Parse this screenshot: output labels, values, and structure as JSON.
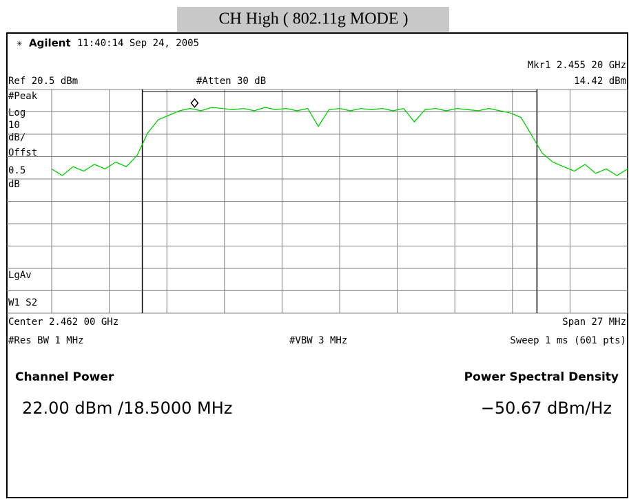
{
  "chart_data": {
    "type": "line",
    "title": "CH High ( 802.11g MODE )",
    "header": {
      "brand": "Agilent",
      "timestamp": "11:40:14  Sep 24, 2005"
    },
    "ref_label": "Ref 20.5 dBm",
    "atten_label": "#Atten 30 dB",
    "marker_label": "Mkr1  2.455 20 GHz",
    "marker_value_label": "14.42 dBm",
    "side_labels": [
      "#Peak",
      "Log",
      "10",
      "dB/",
      "Offst",
      "0.5",
      "dB",
      "LgAv",
      "W1  S2"
    ],
    "center_label": "Center 2.462 00 GHz",
    "span_label": "Span 27 MHz",
    "rbw_label": "#Res BW 1 MHz",
    "vbw_label": "#VBW 3 MHz",
    "sweep_label": "Sweep 1 ms (601 pts)",
    "results": {
      "channel_power_title": "Channel Power",
      "channel_power": "22.00 dBm /18.5000 MHz",
      "psd_title": "Power Spectral Density",
      "psd": "−50.67 dBm/Hz"
    },
    "xlim": [
      2.4485,
      2.4755
    ],
    "xticks": [
      2.4485,
      2.4512,
      2.4539,
      2.4566,
      2.4593,
      2.462,
      2.4647,
      2.4674,
      2.4701,
      2.4728,
      2.4755
    ],
    "ylim": [
      -79.5,
      20.5
    ],
    "yticks": [
      20.5,
      10.5,
      0.5,
      -9.5,
      -19.5,
      -29.5,
      -39.5,
      -49.5,
      -59.5,
      -69.5,
      -79.5
    ],
    "grid": true,
    "channel_edges": [
      2.45275,
      2.47125
    ],
    "marker": {
      "x": 2.4552,
      "y": 14.42
    },
    "x": [
      2.4485,
      2.449,
      2.4495,
      2.45,
      2.4505,
      2.451,
      2.4515,
      2.452,
      2.4525,
      2.453,
      2.4535,
      2.454,
      2.4545,
      2.455,
      2.4555,
      2.456,
      2.4565,
      2.457,
      2.4575,
      2.458,
      2.4585,
      2.459,
      2.4595,
      2.46,
      2.4605,
      2.461,
      2.4615,
      2.462,
      2.4625,
      2.463,
      2.4635,
      2.464,
      2.4645,
      2.465,
      2.4655,
      2.466,
      2.4665,
      2.467,
      2.4675,
      2.468,
      2.4685,
      2.469,
      2.4695,
      2.47,
      2.4705,
      2.471,
      2.4715,
      2.472,
      2.4725,
      2.473,
      2.4735,
      2.474,
      2.4745,
      2.475,
      2.4755
    ],
    "series": [
      {
        "name": "Trace 1",
        "color": "#00d000",
        "values": [
          -15,
          -18,
          -14,
          -16,
          -13,
          -15,
          -12,
          -14,
          -9,
          1,
          7,
          9,
          11,
          12,
          11,
          12.5,
          12,
          11.5,
          12,
          11,
          12.5,
          11.5,
          12,
          11,
          12,
          4,
          11.5,
          12,
          11,
          12,
          11.5,
          12,
          11,
          12,
          6,
          11.5,
          12,
          11,
          12,
          11.5,
          11,
          12,
          11,
          10,
          8,
          0,
          -8,
          -12,
          -14,
          -16,
          -13,
          -17,
          -15,
          -18,
          -15
        ]
      }
    ]
  }
}
